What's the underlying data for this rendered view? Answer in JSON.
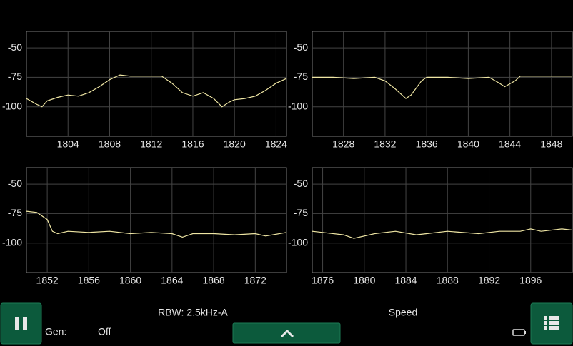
{
  "chart_data": [
    {
      "type": "line",
      "color": "#efe6a4",
      "grid": true,
      "xlim": [
        1800,
        1825
      ],
      "ylim": [
        -125,
        -36
      ],
      "xticks": [
        1804,
        1808,
        1812,
        1816,
        1820,
        1824
      ],
      "yticks": [
        -50,
        -75,
        -100
      ],
      "x": [
        1800,
        1801,
        1801.5,
        1802,
        1803,
        1804,
        1805,
        1806,
        1807,
        1808,
        1809,
        1810,
        1811,
        1812,
        1813,
        1814,
        1815,
        1816,
        1817,
        1818,
        1818.8,
        1819.5,
        1820,
        1821,
        1822,
        1823,
        1824,
        1825
      ],
      "values": [
        -93,
        -98,
        -100,
        -95,
        -92,
        -90,
        -91,
        -88,
        -83,
        -77,
        -73,
        -74,
        -74,
        -74,
        -74,
        -80,
        -88,
        -91,
        -88,
        -93,
        -100,
        -96,
        -94,
        -93,
        -91,
        -86,
        -80,
        -76
      ]
    },
    {
      "type": "line",
      "color": "#efe6a4",
      "grid": true,
      "xlim": [
        1825,
        1850
      ],
      "ylim": [
        -125,
        -36
      ],
      "xticks": [
        1828,
        1832,
        1836,
        1840,
        1844,
        1848
      ],
      "yticks": [
        -50,
        -75,
        -100
      ],
      "x": [
        1825,
        1827,
        1829,
        1831,
        1832,
        1833,
        1834,
        1834.5,
        1835.5,
        1836,
        1838,
        1840,
        1842,
        1843,
        1843.5,
        1844.5,
        1845,
        1847,
        1850
      ],
      "values": [
        -75,
        -75,
        -76,
        -75,
        -78,
        -85,
        -93,
        -90,
        -78,
        -75,
        -75,
        -76,
        -75,
        -80,
        -83,
        -78,
        -74,
        -74,
        -74
      ]
    },
    {
      "type": "line",
      "color": "#efe6a4",
      "grid": true,
      "xlim": [
        1850,
        1875
      ],
      "ylim": [
        -125,
        -36
      ],
      "xticks": [
        1852,
        1856,
        1860,
        1864,
        1868,
        1872
      ],
      "yticks": [
        -50,
        -75,
        -100
      ],
      "x": [
        1850,
        1851,
        1852,
        1852.5,
        1853,
        1854,
        1856,
        1858,
        1860,
        1862,
        1864,
        1865,
        1866,
        1868,
        1870,
        1872,
        1873,
        1875
      ],
      "values": [
        -73,
        -74,
        -80,
        -90,
        -92,
        -90,
        -91,
        -90,
        -92,
        -91,
        -92,
        -95,
        -92,
        -92,
        -93,
        -92,
        -94,
        -91
      ]
    },
    {
      "type": "line",
      "color": "#efe6a4",
      "grid": true,
      "xlim": [
        1875,
        1900
      ],
      "ylim": [
        -125,
        -36
      ],
      "xticks": [
        1876,
        1880,
        1884,
        1888,
        1892,
        1896
      ],
      "yticks": [
        -50,
        -75,
        -100
      ],
      "x": [
        1875,
        1876,
        1878,
        1879,
        1880,
        1881,
        1883,
        1885,
        1886,
        1888,
        1891,
        1893,
        1895,
        1896,
        1897,
        1899,
        1900
      ],
      "values": [
        -90,
        -91,
        -93,
        -96,
        -94,
        -92,
        -90,
        -93,
        -92,
        -90,
        -92,
        -90,
        -90,
        -88,
        -90,
        -88,
        -89
      ]
    }
  ],
  "status": {
    "rbw": "RBW: 2.5kHz-A",
    "mode": "Speed",
    "gen_label": "Gen:",
    "gen_value": "Off"
  }
}
